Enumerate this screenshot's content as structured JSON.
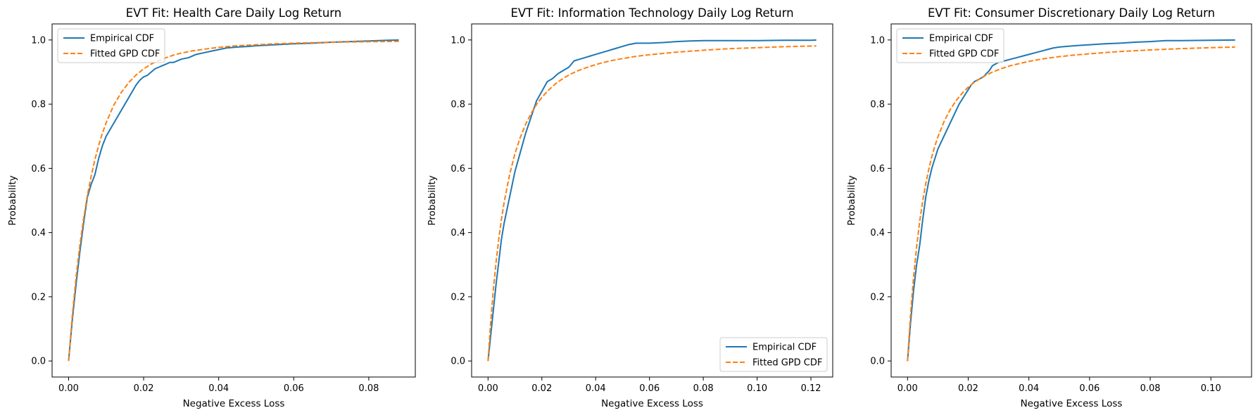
{
  "chart_data": [
    {
      "type": "line",
      "title": "EVT Fit: Health Care Daily Log Return",
      "xlabel": "Negative Excess Loss",
      "ylabel": "Probability",
      "xlim": [
        -0.0044,
        0.0924
      ],
      "ylim": [
        -0.05,
        1.05
      ],
      "xticks": [
        0.0,
        0.02,
        0.04,
        0.06,
        0.08
      ],
      "xtick_labels": [
        "0.00",
        "0.02",
        "0.04",
        "0.06",
        "0.08"
      ],
      "yticks": [
        0.0,
        0.2,
        0.4,
        0.6,
        0.8,
        1.0
      ],
      "ytick_labels": [
        "0.0",
        "0.2",
        "0.4",
        "0.6",
        "0.8",
        "1.0"
      ],
      "grid": false,
      "legend_position": "top-left",
      "series": [
        {
          "name": "Empirical CDF",
          "color": "#1f77b4",
          "style": "solid",
          "x": [
            0,
            0.001,
            0.002,
            0.003,
            0.004,
            0.005,
            0.006,
            0.007,
            0.008,
            0.009,
            0.01,
            0.011,
            0.012,
            0.013,
            0.014,
            0.015,
            0.016,
            0.017,
            0.018,
            0.019,
            0.02,
            0.021,
            0.022,
            0.023,
            0.024,
            0.025,
            0.026,
            0.027,
            0.028,
            0.029,
            0.03,
            0.032,
            0.034,
            0.036,
            0.038,
            0.04,
            0.042,
            0.045,
            0.048,
            0.05,
            0.055,
            0.06,
            0.065,
            0.07,
            0.075,
            0.08,
            0.085,
            0.088
          ],
          "y": [
            0.0,
            0.13,
            0.24,
            0.34,
            0.43,
            0.51,
            0.55,
            0.58,
            0.63,
            0.67,
            0.7,
            0.72,
            0.74,
            0.76,
            0.78,
            0.8,
            0.82,
            0.84,
            0.86,
            0.875,
            0.885,
            0.89,
            0.9,
            0.91,
            0.915,
            0.92,
            0.925,
            0.93,
            0.93,
            0.935,
            0.94,
            0.945,
            0.955,
            0.96,
            0.965,
            0.97,
            0.975,
            0.978,
            0.98,
            0.982,
            0.985,
            0.988,
            0.99,
            0.993,
            0.995,
            0.997,
            0.999,
            1.0
          ]
        },
        {
          "name": "Fitted GPD CDF",
          "color": "#ff7f0e",
          "style": "dashed",
          "x": [
            0,
            0.001,
            0.002,
            0.003,
            0.004,
            0.005,
            0.006,
            0.007,
            0.008,
            0.009,
            0.01,
            0.012,
            0.014,
            0.016,
            0.018,
            0.02,
            0.022,
            0.024,
            0.026,
            0.028,
            0.03,
            0.033,
            0.036,
            0.04,
            0.045,
            0.05,
            0.055,
            0.06,
            0.065,
            0.07,
            0.075,
            0.08,
            0.085,
            0.088
          ],
          "y": [
            0.0,
            0.143,
            0.262,
            0.361,
            0.444,
            0.515,
            0.575,
            0.627,
            0.671,
            0.709,
            0.742,
            0.796,
            0.836,
            0.867,
            0.891,
            0.91,
            0.925,
            0.936,
            0.945,
            0.953,
            0.959,
            0.966,
            0.971,
            0.977,
            0.982,
            0.985,
            0.988,
            0.99,
            0.9915,
            0.9928,
            0.9938,
            0.9946,
            0.9953,
            0.9957
          ]
        }
      ]
    },
    {
      "type": "line",
      "title": "EVT Fit: Information Technology Daily Log Return",
      "xlabel": "Negative Excess Loss",
      "ylabel": "Probability",
      "xlim": [
        -0.0061,
        0.1281
      ],
      "ylim": [
        -0.05,
        1.05
      ],
      "xticks": [
        0.0,
        0.02,
        0.04,
        0.06,
        0.08,
        0.1,
        0.12
      ],
      "xtick_labels": [
        "0.00",
        "0.02",
        "0.04",
        "0.06",
        "0.08",
        "0.10",
        "0.12"
      ],
      "yticks": [
        0.0,
        0.2,
        0.4,
        0.6,
        0.8,
        1.0
      ],
      "ytick_labels": [
        "0.0",
        "0.2",
        "0.4",
        "0.6",
        "0.8",
        "1.0"
      ],
      "grid": false,
      "legend_position": "bottom-right",
      "series": [
        {
          "name": "Empirical CDF",
          "color": "#1f77b4",
          "style": "solid",
          "x": [
            0,
            0.001,
            0.002,
            0.003,
            0.004,
            0.005,
            0.006,
            0.008,
            0.01,
            0.012,
            0.014,
            0.016,
            0.018,
            0.02,
            0.022,
            0.024,
            0.026,
            0.028,
            0.03,
            0.032,
            0.034,
            0.036,
            0.038,
            0.04,
            0.042,
            0.044,
            0.046,
            0.048,
            0.05,
            0.052,
            0.055,
            0.06,
            0.065,
            0.07,
            0.075,
            0.08,
            0.09,
            0.1,
            0.11,
            0.12,
            0.122
          ],
          "y": [
            0.0,
            0.08,
            0.16,
            0.24,
            0.31,
            0.38,
            0.43,
            0.51,
            0.59,
            0.65,
            0.71,
            0.76,
            0.81,
            0.84,
            0.87,
            0.88,
            0.895,
            0.905,
            0.915,
            0.935,
            0.94,
            0.945,
            0.95,
            0.955,
            0.96,
            0.965,
            0.97,
            0.975,
            0.98,
            0.985,
            0.99,
            0.99,
            0.992,
            0.995,
            0.997,
            0.998,
            0.998,
            0.998,
            0.999,
            0.999,
            1.0
          ]
        },
        {
          "name": "Fitted GPD CDF",
          "color": "#ff7f0e",
          "style": "dashed",
          "x": [
            0,
            0.001,
            0.002,
            0.003,
            0.004,
            0.005,
            0.006,
            0.008,
            0.01,
            0.012,
            0.014,
            0.016,
            0.018,
            0.02,
            0.022,
            0.025,
            0.028,
            0.031,
            0.034,
            0.038,
            0.042,
            0.046,
            0.05,
            0.055,
            0.06,
            0.07,
            0.08,
            0.09,
            0.1,
            0.11,
            0.122
          ],
          "y": [
            0.0,
            0.123,
            0.224,
            0.309,
            0.381,
            0.442,
            0.495,
            0.58,
            0.646,
            0.697,
            0.738,
            0.771,
            0.799,
            0.821,
            0.84,
            0.863,
            0.881,
            0.895,
            0.906,
            0.918,
            0.928,
            0.936,
            0.942,
            0.949,
            0.954,
            0.962,
            0.968,
            0.973,
            0.976,
            0.979,
            0.9815
          ]
        }
      ]
    },
    {
      "type": "line",
      "title": "EVT Fit: Consumer Discretionary Daily Log Return",
      "xlabel": "Negative Excess Loss",
      "ylabel": "Probability",
      "xlim": [
        -0.0054,
        0.1134
      ],
      "ylim": [
        -0.05,
        1.05
      ],
      "xticks": [
        0.0,
        0.02,
        0.04,
        0.06,
        0.08,
        0.1
      ],
      "xtick_labels": [
        "0.00",
        "0.02",
        "0.04",
        "0.06",
        "0.08",
        "0.10"
      ],
      "yticks": [
        0.0,
        0.2,
        0.4,
        0.6,
        0.8,
        1.0
      ],
      "ytick_labels": [
        "0.0",
        "0.2",
        "0.4",
        "0.6",
        "0.8",
        "1.0"
      ],
      "grid": false,
      "legend_position": "top-left",
      "series": [
        {
          "name": "Empirical CDF",
          "color": "#1f77b4",
          "style": "solid",
          "x": [
            0,
            0.001,
            0.002,
            0.003,
            0.004,
            0.005,
            0.006,
            0.007,
            0.008,
            0.009,
            0.01,
            0.011,
            0.012,
            0.013,
            0.014,
            0.015,
            0.016,
            0.017,
            0.018,
            0.019,
            0.02,
            0.021,
            0.022,
            0.023,
            0.024,
            0.025,
            0.026,
            0.027,
            0.028,
            0.029,
            0.03,
            0.032,
            0.034,
            0.036,
            0.038,
            0.04,
            0.042,
            0.044,
            0.046,
            0.048,
            0.05,
            0.055,
            0.06,
            0.065,
            0.07,
            0.075,
            0.08,
            0.085,
            0.09,
            0.1,
            0.108
          ],
          "y": [
            0.0,
            0.12,
            0.22,
            0.3,
            0.36,
            0.44,
            0.51,
            0.56,
            0.6,
            0.63,
            0.66,
            0.68,
            0.7,
            0.72,
            0.74,
            0.76,
            0.78,
            0.8,
            0.815,
            0.83,
            0.845,
            0.86,
            0.87,
            0.875,
            0.88,
            0.885,
            0.895,
            0.905,
            0.92,
            0.925,
            0.93,
            0.935,
            0.94,
            0.945,
            0.95,
            0.955,
            0.96,
            0.965,
            0.97,
            0.975,
            0.978,
            0.982,
            0.985,
            0.988,
            0.99,
            0.993,
            0.995,
            0.998,
            0.998,
            0.999,
            1.0
          ]
        },
        {
          "name": "Fitted GPD CDF",
          "color": "#ff7f0e",
          "style": "dashed",
          "x": [
            0,
            0.001,
            0.002,
            0.003,
            0.004,
            0.005,
            0.006,
            0.007,
            0.008,
            0.009,
            0.01,
            0.012,
            0.014,
            0.016,
            0.018,
            0.02,
            0.022,
            0.025,
            0.028,
            0.031,
            0.034,
            0.038,
            0.042,
            0.046,
            0.05,
            0.055,
            0.06,
            0.07,
            0.08,
            0.09,
            0.1,
            0.108
          ],
          "y": [
            0.0,
            0.146,
            0.262,
            0.356,
            0.434,
            0.498,
            0.552,
            0.597,
            0.636,
            0.669,
            0.698,
            0.745,
            0.782,
            0.811,
            0.834,
            0.853,
            0.868,
            0.886,
            0.9,
            0.911,
            0.92,
            0.929,
            0.937,
            0.943,
            0.948,
            0.953,
            0.957,
            0.964,
            0.969,
            0.973,
            0.976,
            0.978
          ]
        }
      ]
    }
  ]
}
